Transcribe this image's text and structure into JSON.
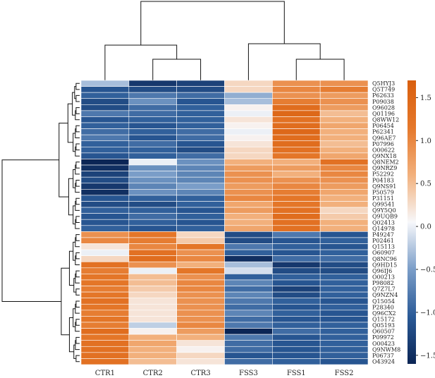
{
  "chart_data": {
    "type": "heatmap",
    "title": "",
    "columns": [
      "CTR1",
      "CTR2",
      "CTR3",
      "FSS3",
      "FSS1",
      "FSS2"
    ],
    "rows": [
      "Q5HYJ3",
      "Q5T749",
      "P62633",
      "P09038",
      "O96028",
      "Q01196",
      "Q8WW12",
      "P06454",
      "P62341",
      "Q96AE7",
      "P07996",
      "O00622",
      "Q9NX18",
      "Q8NEM2",
      "Q9NRZ9",
      "P52292",
      "P04183",
      "Q9NS91",
      "P50579",
      "P31151",
      "Q99541",
      "Q9Y5Q0",
      "Q9UQB9",
      "Q02413",
      "Q14978",
      "P49247",
      "P02461",
      "Q15113",
      "O60907",
      "Q8NC96",
      "Q9HD15",
      "Q96IJ6",
      "O00213",
      "P98082",
      "Q7Z7L7",
      "Q9NZN4",
      "Q15054",
      "P28340",
      "Q96CX2",
      "Q15172",
      "Q05193",
      "O60507",
      "P09972",
      "O00423",
      "Q9NWM8",
      "P06737",
      "O43924"
    ],
    "values": [
      [
        -0.3,
        -1.4,
        -1.3,
        0.3,
        0.9,
        0.9
      ],
      [
        -1.1,
        -1.2,
        -1.2,
        0.3,
        1.0,
        1.1
      ],
      [
        -1.0,
        -0.8,
        -0.9,
        -0.4,
        0.9,
        0.8
      ],
      [
        -1.2,
        -0.6,
        -1.1,
        -0.3,
        1.1,
        0.9
      ],
      [
        -1.2,
        -0.9,
        -1.0,
        0.1,
        1.4,
        0.8
      ],
      [
        -0.8,
        -0.9,
        -1.0,
        0.0,
        1.5,
        0.5
      ],
      [
        -1.1,
        -1.0,
        -1.0,
        0.2,
        1.3,
        0.6
      ],
      [
        -1.0,
        -1.1,
        -1.0,
        0.1,
        1.4,
        0.7
      ],
      [
        -0.9,
        -1.0,
        -0.9,
        0.0,
        1.5,
        0.6
      ],
      [
        -0.8,
        -1.1,
        -0.9,
        0.1,
        1.4,
        0.6
      ],
      [
        -1.0,
        -0.9,
        -1.1,
        0.2,
        1.4,
        0.5
      ],
      [
        -1.0,
        -1.0,
        -1.2,
        0.3,
        1.3,
        0.6
      ],
      [
        -1.1,
        -1.0,
        -0.9,
        0.3,
        1.2,
        0.7
      ],
      [
        -1.6,
        0.0,
        -0.6,
        0.6,
        0.6,
        1.3
      ],
      [
        -1.5,
        -0.6,
        -0.7,
        0.8,
        0.8,
        1.0
      ],
      [
        -1.3,
        -0.5,
        -0.7,
        0.9,
        0.6,
        1.0
      ],
      [
        -1.2,
        -0.6,
        -0.7,
        0.9,
        0.9,
        0.9
      ],
      [
        -1.4,
        -0.7,
        -0.5,
        0.8,
        1.0,
        0.8
      ],
      [
        -1.5,
        -0.6,
        -0.7,
        0.9,
        1.1,
        0.7
      ],
      [
        -1.1,
        -1.0,
        -1.0,
        1.0,
        1.2,
        0.6
      ],
      [
        -1.2,
        -1.2,
        -1.0,
        0.7,
        1.2,
        0.6
      ],
      [
        -1.0,
        -1.0,
        -1.1,
        0.8,
        1.3,
        0.3
      ],
      [
        -1.1,
        -0.9,
        -1.0,
        0.6,
        1.4,
        0.4
      ],
      [
        -1.1,
        -1.0,
        -1.1,
        0.6,
        1.3,
        0.6
      ],
      [
        -1.0,
        -1.1,
        -1.0,
        0.7,
        1.3,
        0.6
      ],
      [
        0.9,
        1.2,
        0.3,
        -1.2,
        -0.8,
        -1.1
      ],
      [
        1.0,
        1.1,
        0.4,
        -1.2,
        -1.1,
        -1.0
      ],
      [
        0.2,
        1.0,
        1.2,
        -0.8,
        -1.0,
        -1.1
      ],
      [
        0.0,
        1.3,
        0.9,
        -1.0,
        -1.1,
        -1.0
      ],
      [
        0.3,
        1.4,
        1.0,
        -1.5,
        -0.9,
        -0.9
      ],
      [
        1.3,
        0.9,
        0.6,
        -0.3,
        -1.4,
        -1.2
      ],
      [
        1.1,
        0.0,
        1.2,
        -0.1,
        -1.2,
        -1.2
      ],
      [
        1.2,
        0.5,
        0.9,
        -1.0,
        -1.0,
        -1.0
      ],
      [
        1.2,
        0.5,
        1.0,
        -0.7,
        -1.1,
        -1.0
      ],
      [
        1.1,
        0.4,
        1.0,
        -0.9,
        -1.3,
        -1.0
      ],
      [
        1.2,
        0.3,
        0.9,
        -0.7,
        -1.2,
        -1.0
      ],
      [
        1.3,
        0.2,
        0.9,
        -0.8,
        -1.0,
        -1.1
      ],
      [
        1.2,
        0.2,
        0.9,
        -0.9,
        -1.1,
        -1.0
      ],
      [
        1.1,
        0.2,
        0.9,
        -0.7,
        -1.0,
        -1.1
      ],
      [
        1.2,
        0.2,
        0.9,
        -0.9,
        -1.1,
        -1.1
      ],
      [
        1.1,
        -0.2,
        1.0,
        -0.8,
        -1.0,
        -1.0
      ],
      [
        1.4,
        0.1,
        0.8,
        -1.6,
        -0.9,
        -1.0
      ],
      [
        1.2,
        0.6,
        0.6,
        -0.8,
        -1.1,
        -1.0
      ],
      [
        1.3,
        0.7,
        0.2,
        -0.9,
        -1.1,
        -1.0
      ],
      [
        1.3,
        0.6,
        0.1,
        -0.9,
        -1.1,
        -1.0
      ],
      [
        1.3,
        0.6,
        0.3,
        -1.1,
        -1.1,
        -1.0
      ],
      [
        1.3,
        0.5,
        0.2,
        -0.9,
        -1.0,
        -1.1
      ]
    ],
    "vmin": -1.6,
    "vmax": 1.7,
    "colorscale": [
      "#0b2555",
      "#2a5a97",
      "#7a9dc8",
      "#f7f8fb",
      "#f2b07c",
      "#e5782b",
      "#d95f0e"
    ],
    "colorbar": {
      "ticks": [
        1.5,
        1.0,
        0.5,
        0.0,
        -0.5,
        -1.0,
        -1.5
      ],
      "labels": [
        "1.5",
        "1.0",
        "0.5",
        "0.0",
        "−0.5",
        "−1.0",
        "−1.5"
      ]
    },
    "column_dendrogram": "((CTR1,(CTR2,CTR3)),(FSS3,(FSS1,FSS2)))",
    "row_dendrogram": "two top-level clusters: rows 1–25 and rows 26–47"
  }
}
